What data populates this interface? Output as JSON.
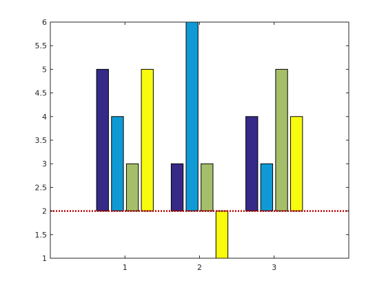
{
  "chart_data": {
    "type": "bar",
    "categories": [
      "1",
      "2",
      "3"
    ],
    "base_value": 2,
    "series": [
      {
        "values": [
          5,
          3,
          4
        ],
        "color": "#352a87"
      },
      {
        "values": [
          4,
          6,
          3
        ],
        "color": "#0f9ad6"
      },
      {
        "values": [
          3,
          3,
          5
        ],
        "color": "#a5be6a"
      },
      {
        "values": [
          5,
          1,
          4
        ],
        "color": "#f9fb0e"
      }
    ],
    "ylim": [
      1,
      6
    ],
    "yticks": [
      1,
      1.5,
      2,
      2.5,
      3,
      3.5,
      4,
      4.5,
      5,
      5.5,
      6
    ],
    "ytick_labels": [
      "1",
      "1.5",
      "2",
      "2.5",
      "3",
      "3.5",
      "4",
      "4.5",
      "5",
      "5.5",
      "6"
    ],
    "xtick_labels": [
      "1",
      "2",
      "3"
    ],
    "baseline_color": "#c00000",
    "baseline_style": "dotted",
    "grid": false,
    "box": true
  }
}
